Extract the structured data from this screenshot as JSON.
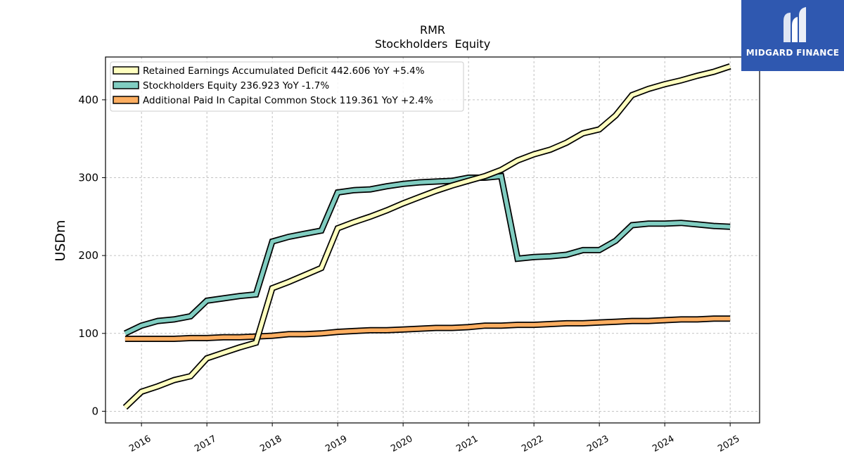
{
  "chart_data": {
    "type": "line",
    "title": "RMR",
    "subtitle": "Stockholders  Equity",
    "ylabel": "USDm",
    "xlabel": "",
    "ylim": [
      -15,
      455
    ],
    "xlim": [
      2015.45,
      2025.45
    ],
    "xticks": [
      2016,
      2017,
      2018,
      2019,
      2020,
      2021,
      2022,
      2023,
      2024,
      2025
    ],
    "xtick_labels": [
      "2016",
      "2017",
      "2018",
      "2019",
      "2020",
      "2021",
      "2022",
      "2023",
      "2024",
      "2025"
    ],
    "yticks": [
      0,
      100,
      200,
      300,
      400
    ],
    "ytick_labels": [
      "0",
      "100",
      "200",
      "300",
      "400"
    ],
    "grid": true,
    "legend_position": "top-left",
    "series": [
      {
        "name": "Retained Earnings Accumulated Deficit  442.606 YoY +5.4%",
        "color": "#ffffbf",
        "x": [
          2015.75,
          2016.0,
          2016.25,
          2016.5,
          2016.75,
          2017.0,
          2017.25,
          2017.5,
          2017.75,
          2018.0,
          2018.25,
          2018.5,
          2018.75,
          2019.0,
          2019.25,
          2019.5,
          2019.75,
          2020.0,
          2020.25,
          2020.5,
          2020.75,
          2021.0,
          2021.25,
          2021.5,
          2021.75,
          2022.0,
          2022.25,
          2022.5,
          2022.75,
          2023.0,
          2023.25,
          2023.5,
          2023.75,
          2024.0,
          2024.25,
          2024.5,
          2024.75,
          2025.0
        ],
        "y": [
          5,
          25,
          32,
          40,
          45,
          68,
          75,
          82,
          88,
          158,
          166,
          175,
          184,
          235,
          243,
          250,
          258,
          267,
          275,
          283,
          290,
          296,
          302,
          310,
          322,
          330,
          336,
          345,
          357,
          362,
          380,
          406,
          414,
          420,
          425,
          431,
          436,
          443
        ]
      },
      {
        "name": "Stockholders Equity  236.923 YoY -1.7%",
        "color": "#80cdc1",
        "x": [
          2015.75,
          2016.0,
          2016.25,
          2016.5,
          2016.75,
          2017.0,
          2017.25,
          2017.5,
          2017.75,
          2018.0,
          2018.25,
          2018.5,
          2018.75,
          2019.0,
          2019.25,
          2019.5,
          2019.75,
          2020.0,
          2020.25,
          2020.5,
          2020.75,
          2021.0,
          2021.25,
          2021.5,
          2021.75,
          2022.0,
          2022.25,
          2022.5,
          2022.75,
          2023.0,
          2023.25,
          2023.5,
          2023.75,
          2024.0,
          2024.25,
          2024.5,
          2024.75,
          2025.0
        ],
        "y": [
          100,
          110,
          116,
          118,
          122,
          142,
          145,
          148,
          150,
          218,
          224,
          228,
          232,
          281,
          284,
          285,
          289,
          292,
          294,
          295,
          296,
          300,
          300,
          302,
          196,
          198,
          199,
          201,
          207,
          207,
          219,
          239,
          241,
          241,
          242,
          240,
          238,
          237
        ]
      },
      {
        "name": "Additional Paid In Capital Common Stock  119.361 YoY +2.4%",
        "color": "#fdae61",
        "x": [
          2015.75,
          2016.0,
          2016.25,
          2016.5,
          2016.75,
          2017.0,
          2017.25,
          2017.5,
          2017.75,
          2018.0,
          2018.25,
          2018.5,
          2018.75,
          2019.0,
          2019.25,
          2019.5,
          2019.75,
          2020.0,
          2020.25,
          2020.5,
          2020.75,
          2021.0,
          2021.25,
          2021.5,
          2021.75,
          2022.0,
          2022.25,
          2022.5,
          2022.75,
          2023.0,
          2023.25,
          2023.5,
          2023.75,
          2024.0,
          2024.25,
          2024.5,
          2024.75,
          2025.0
        ],
        "y": [
          93,
          93,
          93,
          93,
          94,
          94,
          95,
          95,
          96,
          97,
          99,
          99,
          100,
          102,
          103,
          104,
          104,
          105,
          106,
          107,
          107,
          108,
          110,
          110,
          111,
          111,
          112,
          113,
          113,
          114,
          115,
          116,
          116,
          117,
          118,
          118,
          119,
          119
        ]
      }
    ]
  },
  "logo": {
    "brand": "MIDGARD FINANCE",
    "color": "#2f58b0"
  }
}
